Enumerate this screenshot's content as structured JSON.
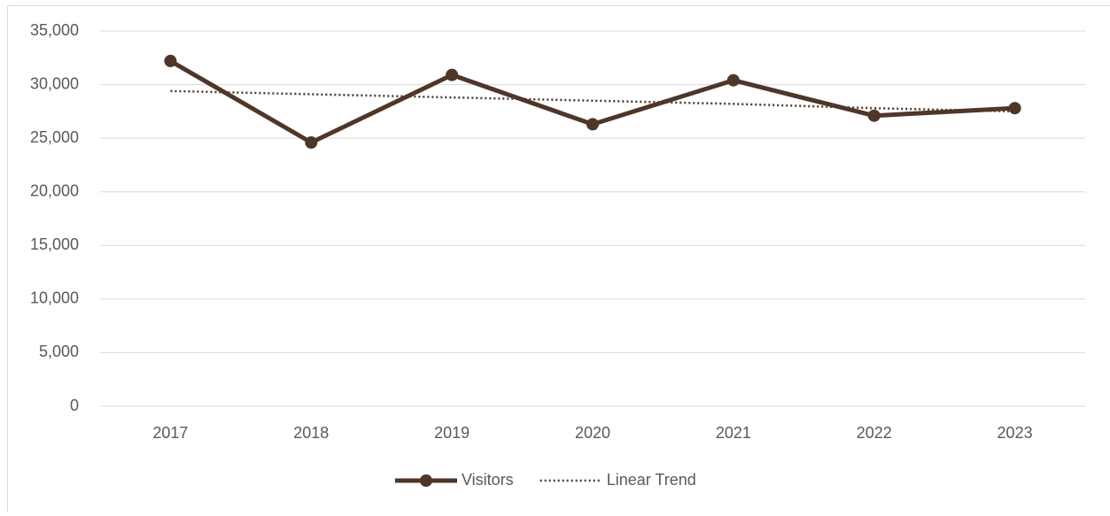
{
  "chart_data": {
    "type": "line",
    "categories": [
      "2017",
      "2018",
      "2019",
      "2020",
      "2021",
      "2022",
      "2023"
    ],
    "series": [
      {
        "name": "Visitors",
        "color": "#4e3629",
        "values": [
          32200,
          24600,
          30900,
          26300,
          30400,
          27100,
          27800
        ]
      },
      {
        "name": "Linear Trend",
        "color": "#4e3629",
        "dashed": true,
        "values": [
          29400,
          29100,
          28800,
          28500,
          28200,
          27800,
          27500
        ]
      }
    ],
    "ylim": [
      0,
      35000
    ],
    "yticks": [
      0,
      {
        "value": 5000,
        "label": "5,000"
      },
      {
        "value": 10000,
        "label": "10,000"
      },
      {
        "value": 15000,
        "label": "15,000"
      },
      {
        "value": 20000,
        "label": "20,000"
      },
      {
        "value": 25000,
        "label": "25,000"
      },
      {
        "value": 30000,
        "label": "30,000"
      },
      {
        "value": 35000,
        "label": "35,000"
      }
    ],
    "grid": true,
    "legend": "bottom"
  }
}
